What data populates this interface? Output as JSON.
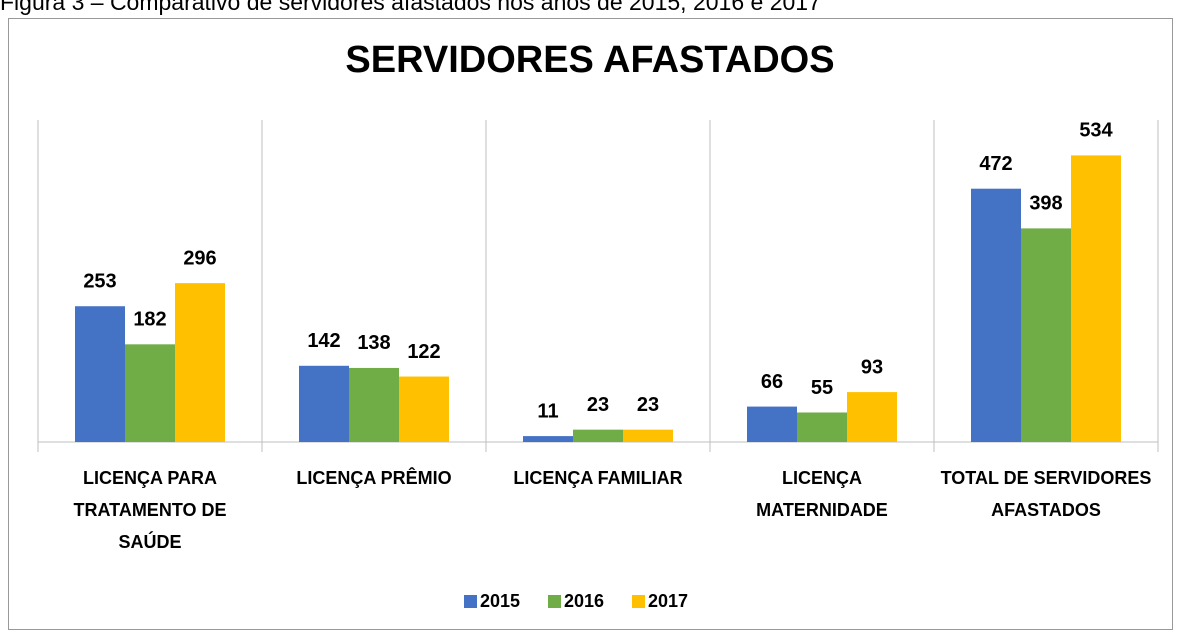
{
  "caption": "Figura 3 – Comparativo de servidores afastados nos anos de 2015, 2016 e 2017",
  "chart_data": {
    "type": "bar",
    "title": "SERVIDORES AFASTADOS",
    "categories": [
      "LICENÇA PARA TRATAMENTO DE SAÚDE",
      "LICENÇA PRÊMIO",
      "LICENÇA FAMILIAR",
      "LICENÇA MATERNIDADE",
      "TOTAL DE SERVIDORES AFASTADOS"
    ],
    "series": [
      {
        "name": "2015",
        "color": "#4472c4",
        "values": [
          253,
          142,
          11,
          66,
          472
        ]
      },
      {
        "name": "2016",
        "color": "#70ad47",
        "values": [
          182,
          138,
          23,
          55,
          398
        ]
      },
      {
        "name": "2017",
        "color": "#ffc000",
        "values": [
          296,
          122,
          23,
          93,
          534
        ]
      }
    ],
    "ylim": [
      0,
      600
    ],
    "legend": "bottom"
  }
}
